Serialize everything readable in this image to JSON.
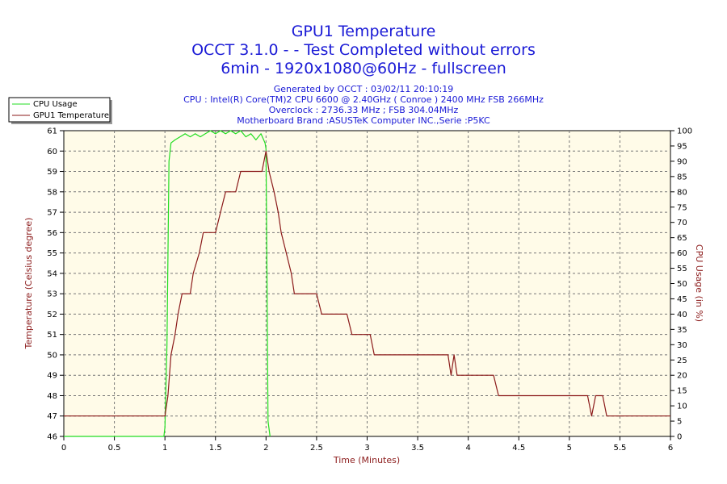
{
  "chart_data": {
    "type": "line",
    "title_lines": [
      "GPU1 Temperature",
      "OCCT 3.1.0 -  - Test Completed without errors",
      "6min - 1920x1080@60Hz - fullscreen"
    ],
    "info_lines": [
      "Generated by OCCT : 03/02/11 20:10:19",
      "CPU : Intel(R) Core(TM)2 CPU 6600 @ 2.40GHz ( Conroe ) 2400 MHz FSB 266MHz",
      "Overclock : 2736.33 MHz ; FSB 304.04MHz",
      "Motherboard Brand :ASUSTeK Computer INC.,Serie :P5KC"
    ],
    "xlabel": "Time (Minutes)",
    "ylabel_left": "Temperature (Celsius degree)",
    "ylabel_right": "CPU Usage (in %)",
    "xlim": [
      0,
      6
    ],
    "ylim_left": [
      46,
      61
    ],
    "ylim_right": [
      0,
      100
    ],
    "x_ticks": [
      "0",
      "0.5",
      "1",
      "1.5",
      "2",
      "2.5",
      "3",
      "3.5",
      "4",
      "4.5",
      "5",
      "5.5",
      "6"
    ],
    "y_left_ticks": [
      "46",
      "47",
      "48",
      "49",
      "50",
      "51",
      "52",
      "53",
      "54",
      "55",
      "56",
      "57",
      "58",
      "59",
      "60",
      "61"
    ],
    "y_right_ticks": [
      "0",
      "5",
      "10",
      "15",
      "20",
      "25",
      "30",
      "35",
      "40",
      "45",
      "50",
      "55",
      "60",
      "65",
      "70",
      "75",
      "80",
      "85",
      "90",
      "95",
      "100"
    ],
    "grid": true,
    "legend_position": "top-left",
    "colors": {
      "cpu_usage": "#22dd22",
      "gpu_temp": "#8b1a1a",
      "plot_bg": "#fffbe8",
      "title": "#1a1ad6"
    },
    "series": [
      {
        "name": "CPU Usage",
        "axis": "right",
        "points": [
          [
            0,
            0
          ],
          [
            0.99,
            0
          ],
          [
            1.0,
            3
          ],
          [
            1.02,
            30
          ],
          [
            1.04,
            90
          ],
          [
            1.06,
            96
          ],
          [
            1.1,
            97
          ],
          [
            1.15,
            98
          ],
          [
            1.2,
            99
          ],
          [
            1.25,
            98
          ],
          [
            1.3,
            99
          ],
          [
            1.35,
            98
          ],
          [
            1.4,
            99
          ],
          [
            1.45,
            100
          ],
          [
            1.5,
            99
          ],
          [
            1.55,
            100
          ],
          [
            1.6,
            99
          ],
          [
            1.65,
            100
          ],
          [
            1.7,
            99
          ],
          [
            1.75,
            100
          ],
          [
            1.8,
            98
          ],
          [
            1.85,
            99
          ],
          [
            1.9,
            97
          ],
          [
            1.95,
            99
          ],
          [
            1.99,
            96
          ],
          [
            2.0,
            94
          ],
          [
            2.01,
            50
          ],
          [
            2.02,
            5
          ],
          [
            2.04,
            0
          ]
        ]
      },
      {
        "name": "GPU1 Temperature",
        "axis": "left",
        "points": [
          [
            0,
            47
          ],
          [
            0.99,
            47
          ],
          [
            1.0,
            47
          ],
          [
            1.03,
            48
          ],
          [
            1.06,
            50
          ],
          [
            1.1,
            51
          ],
          [
            1.13,
            52
          ],
          [
            1.17,
            53
          ],
          [
            1.25,
            53
          ],
          [
            1.28,
            54
          ],
          [
            1.34,
            55
          ],
          [
            1.38,
            56
          ],
          [
            1.5,
            56
          ],
          [
            1.55,
            57
          ],
          [
            1.6,
            58
          ],
          [
            1.7,
            58
          ],
          [
            1.75,
            59
          ],
          [
            1.96,
            59
          ],
          [
            2.0,
            60
          ],
          [
            2.03,
            59
          ],
          [
            2.08,
            58
          ],
          [
            2.12,
            57
          ],
          [
            2.15,
            56
          ],
          [
            2.2,
            55
          ],
          [
            2.25,
            54
          ],
          [
            2.28,
            53
          ],
          [
            2.5,
            53
          ],
          [
            2.55,
            52
          ],
          [
            2.8,
            52
          ],
          [
            2.85,
            51
          ],
          [
            3.03,
            51
          ],
          [
            3.07,
            50
          ],
          [
            3.8,
            50
          ],
          [
            3.83,
            49
          ],
          [
            3.86,
            50
          ],
          [
            3.89,
            49
          ],
          [
            3.93,
            49
          ],
          [
            4.25,
            49
          ],
          [
            4.3,
            48
          ],
          [
            5.18,
            48
          ],
          [
            5.22,
            47
          ],
          [
            5.26,
            48
          ],
          [
            5.33,
            48
          ],
          [
            5.37,
            47
          ],
          [
            6.0,
            47
          ]
        ]
      }
    ]
  }
}
